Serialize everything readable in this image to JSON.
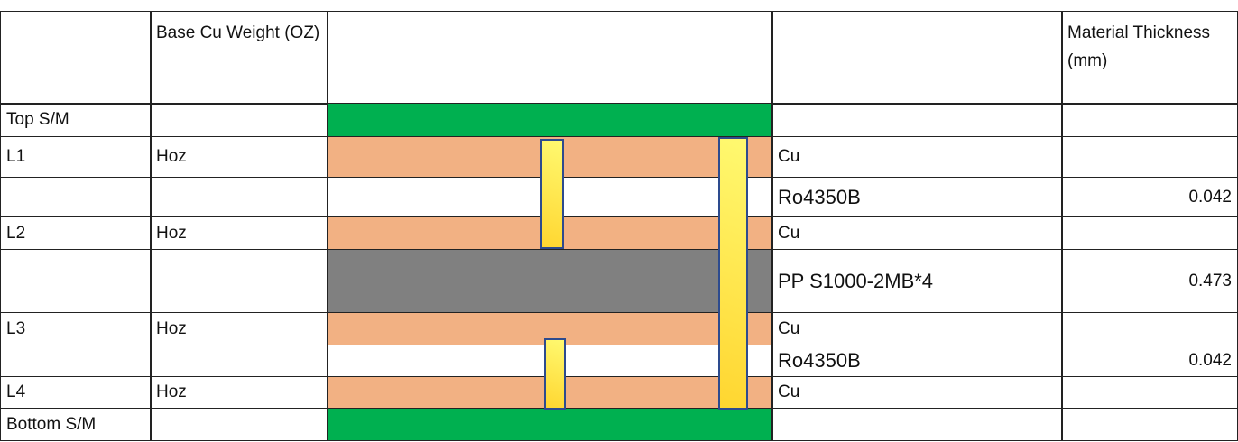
{
  "header": {
    "base_cu": "Base Cu Weight (OZ)",
    "thickness": "Material Thickness (mm)"
  },
  "colors": {
    "solder_mask": "#00b050",
    "copper": "#f2b183",
    "core": "#ffffff",
    "prepreg": "#808080",
    "via": "#ffe040"
  },
  "rows": [
    {
      "layer": "Top S/M",
      "cu": "",
      "material": "",
      "thickness": "",
      "type": "solder_mask"
    },
    {
      "layer": "L1",
      "cu": "Hoz",
      "material": "Cu",
      "thickness": "",
      "type": "copper"
    },
    {
      "layer": "",
      "cu": "",
      "material": "Ro4350B",
      "thickness": "0.042",
      "type": "core"
    },
    {
      "layer": "L2",
      "cu": "Hoz",
      "material": "Cu",
      "thickness": "",
      "type": "copper"
    },
    {
      "layer": "",
      "cu": "",
      "material": "PP S1000-2MB*4",
      "thickness": "0.473",
      "type": "prepreg"
    },
    {
      "layer": "L3",
      "cu": "Hoz",
      "material": "Cu",
      "thickness": "",
      "type": "copper"
    },
    {
      "layer": "",
      "cu": "",
      "material": "Ro4350B",
      "thickness": "0.042",
      "type": "core"
    },
    {
      "layer": "L4",
      "cu": "Hoz",
      "material": "Cu",
      "thickness": "",
      "type": "copper"
    },
    {
      "layer": "Bottom S/M",
      "cu": "",
      "material": "",
      "thickness": "",
      "type": "solder_mask"
    }
  ]
}
